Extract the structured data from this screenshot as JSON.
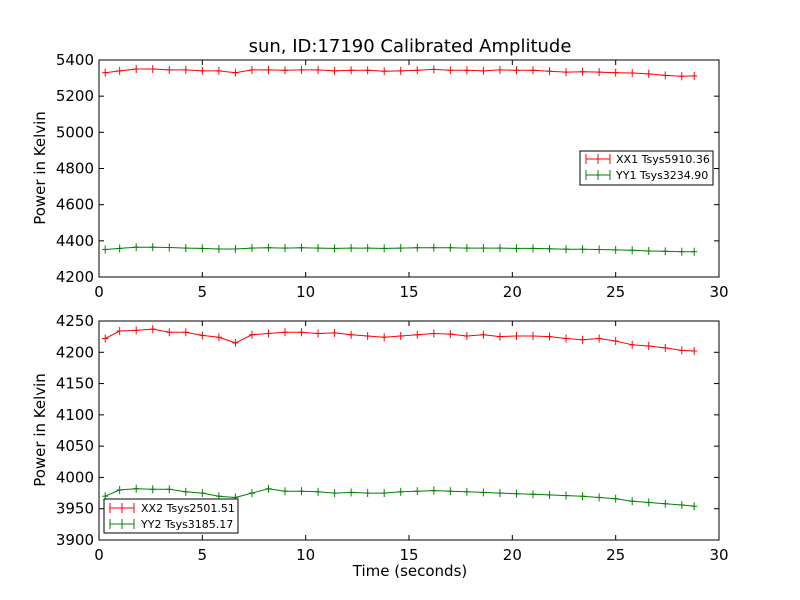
{
  "title": "sun, ID:17190 Calibrated Amplitude",
  "chart_data": [
    {
      "type": "line",
      "ylabel": "Power in Kelvin",
      "xlabel": "",
      "xlim": [
        0,
        30
      ],
      "ylim": [
        4200,
        5400
      ],
      "xticks": [
        "0",
        "5",
        "10",
        "15",
        "20",
        "25",
        "30"
      ],
      "yticks": [
        "4200",
        "4400",
        "4600",
        "4800",
        "5000",
        "5200",
        "5400"
      ],
      "grid": false,
      "legend_position": "center-right",
      "x": [
        0.3,
        1.0,
        1.8,
        2.6,
        3.4,
        4.2,
        5.0,
        5.8,
        6.6,
        7.4,
        8.2,
        9.0,
        9.8,
        10.6,
        11.4,
        12.2,
        13.0,
        13.8,
        14.6,
        15.4,
        16.2,
        17.0,
        17.8,
        18.6,
        19.4,
        20.2,
        21.0,
        21.8,
        22.6,
        23.4,
        24.2,
        25.0,
        25.8,
        26.6,
        27.4,
        28.2,
        28.8
      ],
      "series": [
        {
          "name": "XX1 Tsys5910.36",
          "color": "#ff0000",
          "values": [
            5330,
            5340,
            5350,
            5350,
            5345,
            5345,
            5340,
            5340,
            5330,
            5345,
            5345,
            5343,
            5345,
            5345,
            5340,
            5343,
            5343,
            5338,
            5340,
            5343,
            5348,
            5343,
            5343,
            5340,
            5345,
            5343,
            5343,
            5338,
            5333,
            5335,
            5333,
            5330,
            5328,
            5323,
            5315,
            5310,
            5312
          ]
        },
        {
          "name": "YY1 Tsys3234.90",
          "color": "#008000",
          "values": [
            4352,
            4358,
            4365,
            4365,
            4363,
            4360,
            4358,
            4355,
            4355,
            4360,
            4362,
            4360,
            4362,
            4360,
            4358,
            4360,
            4360,
            4358,
            4360,
            4362,
            4362,
            4362,
            4360,
            4360,
            4360,
            4358,
            4358,
            4356,
            4354,
            4354,
            4352,
            4350,
            4348,
            4344,
            4342,
            4340,
            4340
          ]
        }
      ]
    },
    {
      "type": "line",
      "ylabel": "Power in Kelvin",
      "xlabel": "Time (seconds)",
      "xlim": [
        0,
        30
      ],
      "ylim": [
        3900,
        4250
      ],
      "xticks": [
        "0",
        "5",
        "10",
        "15",
        "20",
        "25",
        "30"
      ],
      "yticks": [
        "3900",
        "3950",
        "4000",
        "4050",
        "4100",
        "4150",
        "4200",
        "4250"
      ],
      "grid": false,
      "legend_position": "lower-left",
      "x": [
        0.3,
        1.0,
        1.8,
        2.6,
        3.4,
        4.2,
        5.0,
        5.8,
        6.6,
        7.4,
        8.2,
        9.0,
        9.8,
        10.6,
        11.4,
        12.2,
        13.0,
        13.8,
        14.6,
        15.4,
        16.2,
        17.0,
        17.8,
        18.6,
        19.4,
        20.2,
        21.0,
        21.8,
        22.6,
        23.4,
        24.2,
        25.0,
        25.8,
        26.6,
        27.4,
        28.2,
        28.8
      ],
      "series": [
        {
          "name": "XX2 Tsys2501.51",
          "color": "#ff0000",
          "values": [
            4222,
            4234,
            4235,
            4237,
            4232,
            4232,
            4227,
            4224,
            4215,
            4228,
            4230,
            4232,
            4232,
            4230,
            4231,
            4228,
            4226,
            4224,
            4226,
            4228,
            4230,
            4229,
            4226,
            4228,
            4225,
            4226,
            4226,
            4225,
            4222,
            4220,
            4222,
            4218,
            4212,
            4210,
            4207,
            4203,
            4202
          ]
        },
        {
          "name": "YY2 Tsys3185.17",
          "color": "#008000",
          "values": [
            3970,
            3980,
            3982,
            3981,
            3981,
            3977,
            3975,
            3970,
            3968,
            3975,
            3982,
            3978,
            3978,
            3977,
            3975,
            3976,
            3975,
            3975,
            3977,
            3978,
            3979,
            3978,
            3977,
            3976,
            3975,
            3974,
            3973,
            3972,
            3971,
            3970,
            3968,
            3966,
            3962,
            3960,
            3958,
            3956,
            3954
          ]
        }
      ]
    }
  ]
}
